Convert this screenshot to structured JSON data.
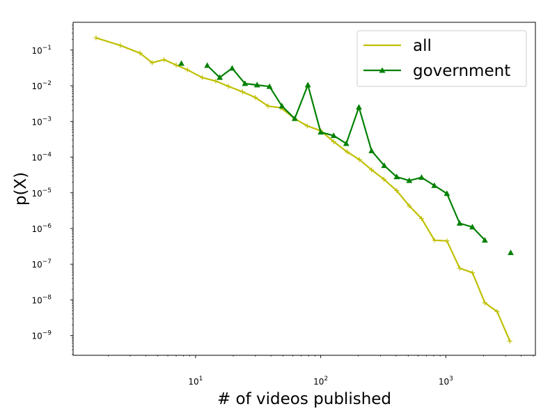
{
  "chart_data": {
    "type": "line",
    "title": "",
    "xlabel": "# of videos published",
    "ylabel": "p(X)",
    "xscale": "log",
    "yscale": "log",
    "xlim": [
      1.05,
      5200
    ],
    "ylim": [
      2.8e-10,
      0.6
    ],
    "grid": false,
    "legend_position": "top-right",
    "x_ticks": [
      {
        "value": 10,
        "base": "10",
        "exp": "1"
      },
      {
        "value": 100,
        "base": "10",
        "exp": "2"
      },
      {
        "value": 1000,
        "base": "10",
        "exp": "3"
      }
    ],
    "y_ticks": [
      {
        "value": 0.1,
        "base": "10",
        "exp": "−1"
      },
      {
        "value": 0.01,
        "base": "10",
        "exp": "−2"
      },
      {
        "value": 0.001,
        "base": "10",
        "exp": "−3"
      },
      {
        "value": 0.0001,
        "base": "10",
        "exp": "−4"
      },
      {
        "value": 1e-05,
        "base": "10",
        "exp": "−5"
      },
      {
        "value": 1e-06,
        "base": "10",
        "exp": "−6"
      },
      {
        "value": 1e-07,
        "base": "10",
        "exp": "−7"
      },
      {
        "value": 1e-08,
        "base": "10",
        "exp": "−8"
      },
      {
        "value": 1e-09,
        "base": "10",
        "exp": "−9"
      }
    ],
    "series": [
      {
        "name": "all",
        "color": "#bfbf00",
        "marker": "plus",
        "points": [
          [
            1.6,
            0.22
          ],
          [
            2.5,
            0.135
          ],
          [
            3.6,
            0.082
          ],
          [
            4.5,
            0.044
          ],
          [
            5.6,
            0.054
          ],
          [
            7.0,
            0.038
          ],
          [
            8.6,
            0.028
          ],
          [
            11.3,
            0.017
          ],
          [
            14.5,
            0.0135
          ],
          [
            18.3,
            0.0096
          ],
          [
            23.7,
            0.0068
          ],
          [
            30.0,
            0.0047
          ],
          [
            38.0,
            0.0027
          ],
          [
            48.0,
            0.0024
          ],
          [
            62.0,
            0.0012
          ],
          [
            78.0,
            0.00075
          ],
          [
            100,
            0.00055
          ],
          [
            127,
            0.00027
          ],
          [
            163,
            0.00014
          ],
          [
            204,
            8.5e-05
          ],
          [
            255,
            4.4e-05
          ],
          [
            320,
            2.4e-05
          ],
          [
            405,
            1.15e-05
          ],
          [
            510,
            4.3e-06
          ],
          [
            640,
            1.9e-06
          ],
          [
            810,
            4.7e-07
          ],
          [
            1020,
            4.5e-07
          ],
          [
            1290,
            7.7e-08
          ],
          [
            1630,
            5.8e-08
          ],
          [
            2050,
            8.3e-09
          ],
          [
            2570,
            4.7e-09
          ],
          [
            3250,
            7e-10
          ]
        ]
      },
      {
        "name": "government",
        "color": "#008000",
        "marker": "triangle",
        "segments": [
          [
            [
              7.7,
              0.042
            ]
          ],
          [
            [
              12.4,
              0.037
            ],
            [
              15.6,
              0.017
            ],
            [
              19.6,
              0.031
            ],
            [
              24.8,
              0.0115
            ],
            [
              31.0,
              0.0105
            ],
            [
              39.0,
              0.0095
            ],
            [
              49.0,
              0.0027
            ],
            [
              62.0,
              0.0012
            ],
            [
              79.0,
              0.0105
            ],
            [
              100,
              0.0005
            ],
            [
              127,
              0.0004
            ],
            [
              160,
              0.00024
            ],
            [
              202,
              0.0025
            ],
            [
              255,
              0.00015
            ],
            [
              322,
              5.8e-05
            ],
            [
              405,
              2.8e-05
            ],
            [
              510,
              2.2e-05
            ],
            [
              640,
              2.7e-05
            ],
            [
              810,
              1.6e-05
            ],
            [
              1020,
              9.5e-06
            ],
            [
              1290,
              1.4e-06
            ],
            [
              1630,
              1.1e-06
            ],
            [
              2050,
              4.7e-07
            ]
          ],
          [
            [
              3300,
              2.1e-07
            ]
          ]
        ]
      }
    ]
  }
}
